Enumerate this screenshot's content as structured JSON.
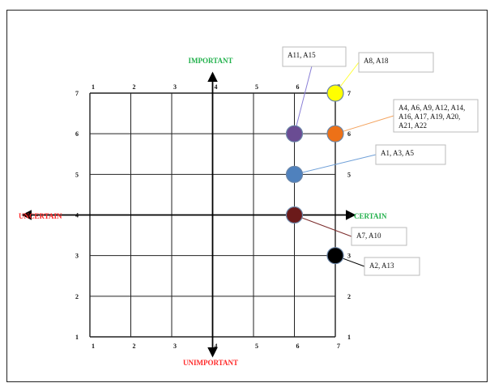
{
  "chart_data": {
    "type": "scatter",
    "title": "",
    "xlim": [
      1,
      7
    ],
    "ylim": [
      1,
      7
    ],
    "grid": true,
    "axis_labels": {
      "top": "IMPORTANT",
      "bottom": "UNIMPORTANT",
      "left": "UNCERTAIN",
      "right": "CERTAIN"
    },
    "axis_colors": {
      "top": "#22b14c",
      "bottom": "#ff2a2a",
      "left": "#ff2a2a",
      "right": "#22b14c"
    },
    "x_ticks": [
      "1",
      "2",
      "3",
      "4",
      "5",
      "6",
      "7"
    ],
    "y_ticks": [
      "1",
      "2",
      "3",
      "4",
      "5",
      "6",
      "7"
    ],
    "points": [
      {
        "x": 7,
        "y": 7,
        "color": "#ffff00",
        "label": "A8, A18",
        "line_color": "#ffff33"
      },
      {
        "x": 6,
        "y": 6,
        "color": "#6a4c93",
        "label": "A11,  A15",
        "line_color": "#8a7fd6"
      },
      {
        "x": 7,
        "y": 6,
        "color": "#ed7117",
        "label": "A4, A6, A9, A12, A14, A16, A17,  A19, A20, A21, A22",
        "line_color": "#f4a460"
      },
      {
        "x": 6,
        "y": 5,
        "color": "#4f81bd",
        "label": "A1, A3, A5",
        "line_color": "#6fa0d8"
      },
      {
        "x": 6,
        "y": 4,
        "color": "#6b1a1a",
        "label": "A7, A10",
        "line_color": "#7a2a2a"
      },
      {
        "x": 7,
        "y": 3,
        "color": "#000000",
        "label": "A2, A13",
        "line_color": "#000000"
      }
    ]
  }
}
